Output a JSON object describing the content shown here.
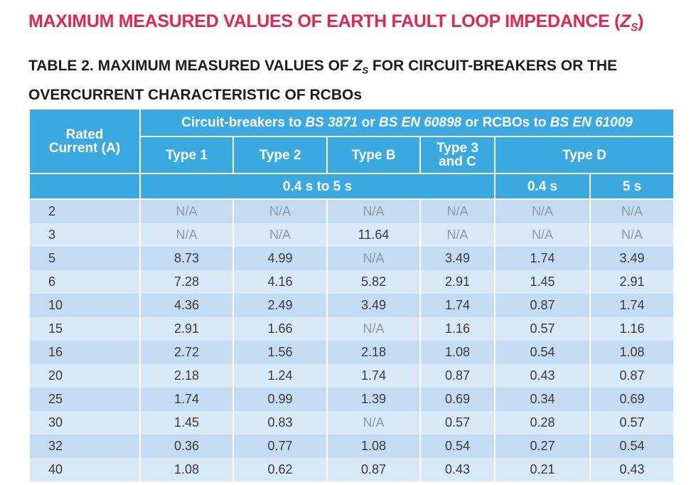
{
  "heading": {
    "text": "MAXIMUM MEASURED VALUES OF EARTH FAULT LOOP IMPEDANCE (",
    "symbol": "Z",
    "subscript": "S",
    "close": ")"
  },
  "table_title": {
    "before": "TABLE 2. MAXIMUM MEASURED VALUES OF ",
    "symbol": "Z",
    "subscript": "S",
    "after": " FOR CIRCUIT-BREAKERS OR THE OVERCURRENT CHARACTERISTIC OF RCBOs"
  },
  "table": {
    "header": {
      "rated_current": "Rated Current (A)",
      "group": [
        "Circuit-breakers to ",
        "BS 3871",
        " or ",
        "BS EN 60898",
        " or RCBOs to ",
        "BS EN 61009"
      ],
      "types": [
        "Type 1",
        "Type 2",
        "Type B",
        "Type 3 and C",
        "Type D"
      ],
      "times": [
        "0.4 s to 5 s",
        "0.4 s",
        "5 s"
      ]
    },
    "rows": [
      [
        2,
        "N/A",
        "N/A",
        "N/A",
        "N/A",
        "N/A",
        "N/A"
      ],
      [
        3,
        "N/A",
        "N/A",
        11.64,
        "N/A",
        "N/A",
        "N/A"
      ],
      [
        5,
        8.73,
        4.99,
        "N/A",
        3.49,
        1.74,
        3.49
      ],
      [
        6,
        7.28,
        4.16,
        5.82,
        2.91,
        1.45,
        2.91
      ],
      [
        10,
        4.36,
        2.49,
        3.49,
        1.74,
        0.87,
        1.74
      ],
      [
        15,
        2.91,
        1.66,
        "N/A",
        1.16,
        0.57,
        1.16
      ],
      [
        16,
        2.72,
        1.56,
        2.18,
        1.08,
        0.54,
        1.08
      ],
      [
        20,
        2.18,
        1.24,
        1.74,
        0.87,
        0.43,
        0.87
      ],
      [
        25,
        1.74,
        0.99,
        1.39,
        0.69,
        0.34,
        0.69
      ],
      [
        30,
        1.45,
        0.83,
        "N/A",
        0.57,
        0.28,
        0.57
      ],
      [
        32,
        0.36,
        0.77,
        1.08,
        0.54,
        0.27,
        0.54
      ],
      [
        40,
        1.08,
        0.62,
        0.87,
        0.43,
        0.21,
        0.43
      ]
    ]
  }
}
